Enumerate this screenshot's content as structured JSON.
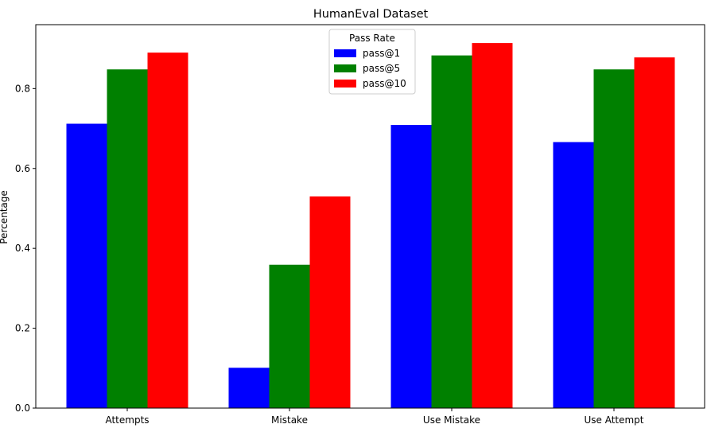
{
  "chart_data": {
    "type": "bar",
    "title": "HumanEval Dataset",
    "xlabel": "",
    "ylabel": "Percentage",
    "categories": [
      "Attempts",
      "Mistake",
      "Use Mistake",
      "Use Attempt"
    ],
    "series": [
      {
        "name": "pass@1",
        "color": "#0000ff",
        "values": [
          0.712,
          0.101,
          0.709,
          0.666
        ]
      },
      {
        "name": "pass@5",
        "color": "#008000",
        "values": [
          0.848,
          0.359,
          0.883,
          0.848
        ]
      },
      {
        "name": "pass@10",
        "color": "#ff0000",
        "values": [
          0.89,
          0.53,
          0.914,
          0.878
        ]
      }
    ],
    "ylim": [
      0,
      0.96
    ],
    "yticks": [
      "0.0",
      "0.2",
      "0.4",
      "0.6",
      "0.8"
    ],
    "grid": false,
    "legend": {
      "title": "Pass Rate",
      "placement": "upper-center"
    }
  }
}
